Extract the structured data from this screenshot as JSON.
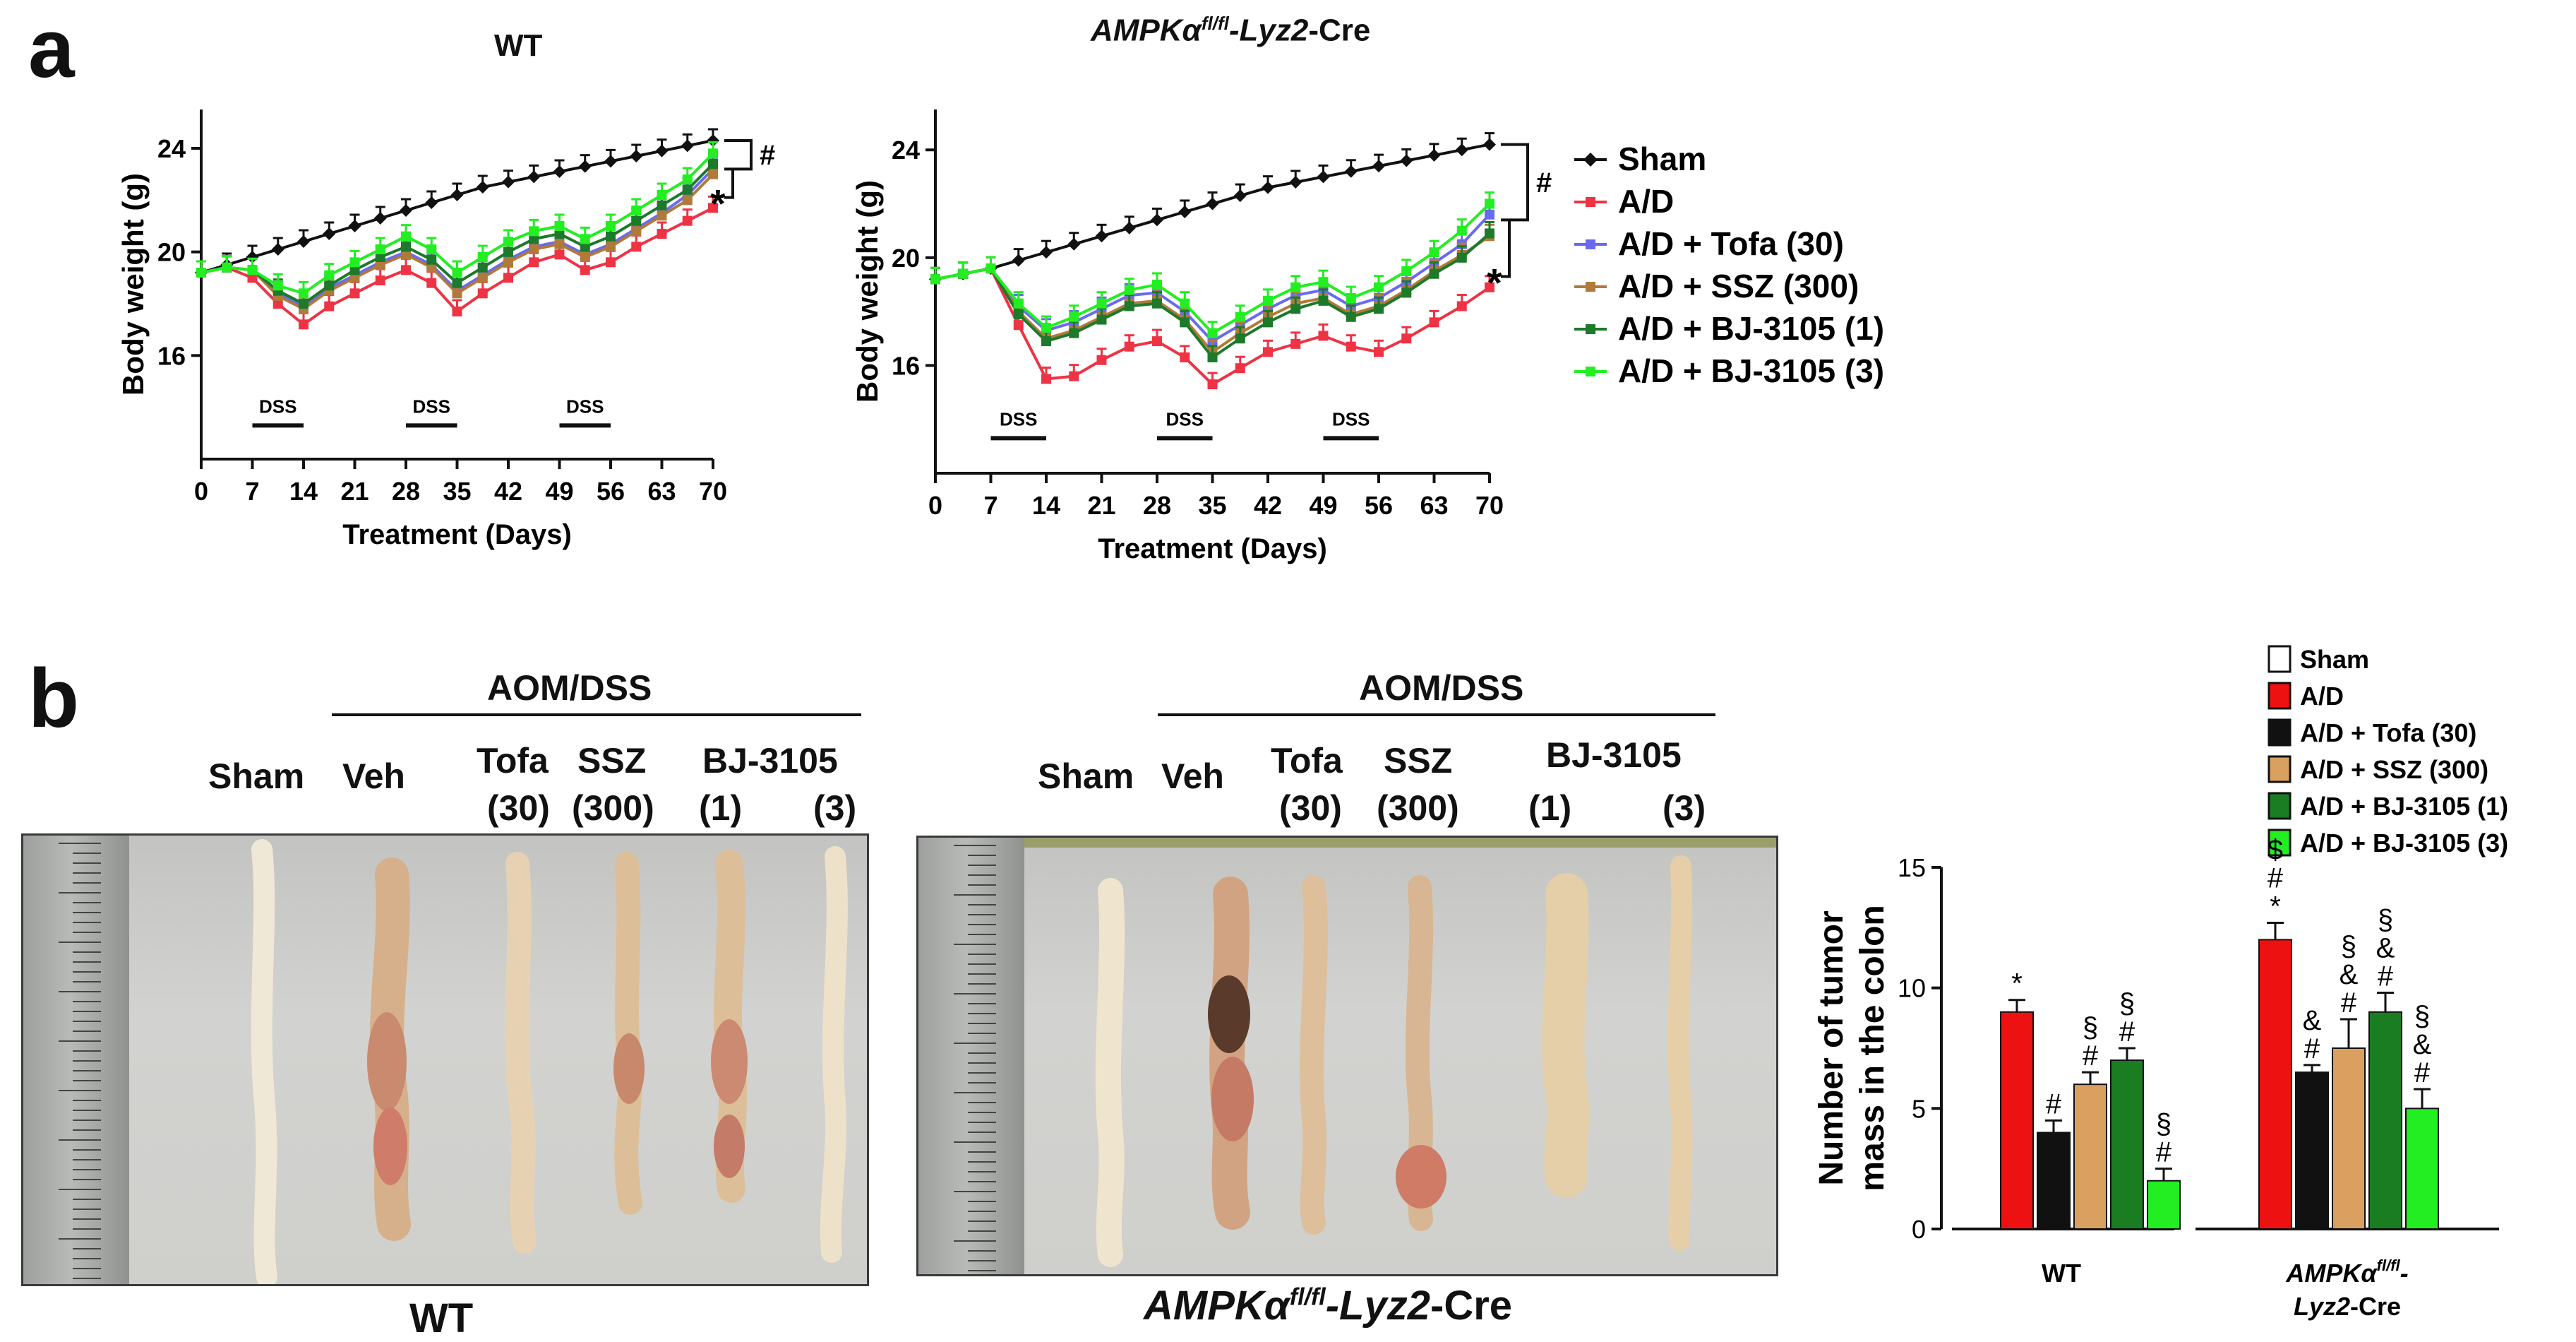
{
  "panel_a": {
    "letter": "a",
    "wt_title": "WT",
    "ko_title_main": "AMPKα",
    "ko_title_sup": "fl/fl",
    "ko_title_rest": "-Lyz2",
    "ko_title_cre": "-Cre",
    "legend": [
      {
        "label": "Sham",
        "color": "#111111"
      },
      {
        "label": "A/D",
        "color": "#ee3344"
      },
      {
        "label": "A/D + Tofa (30)",
        "color": "#6a6af0"
      },
      {
        "label": "A/D + SSZ (300)",
        "color": "#b07a3a"
      },
      {
        "label": "A/D + BJ-3105 (1)",
        "color": "#1c7a2a"
      },
      {
        "label": "A/D + BJ-3105 (3)",
        "color": "#22ee22"
      }
    ],
    "dss_label": "DSS",
    "significance": {
      "hash": "#",
      "star": "*"
    }
  },
  "panel_b": {
    "letter": "b",
    "aom_dss": "AOM/DSS",
    "treatments": {
      "sham": "Sham",
      "veh": "Veh",
      "tofa": "Tofa",
      "tofa_dose": "(30)",
      "ssz": "SSZ",
      "ssz_dose": "(300)",
      "bj": "BJ-3105",
      "bj_dose1": "(1)",
      "bj_dose3": "(3)"
    },
    "wt_caption": "WT",
    "ko_caption_main": "AMPKα",
    "ko_caption_sup": "fl/fl",
    "ko_caption_rest": "-Lyz2",
    "ko_caption_cre": "-Cre",
    "bar_legend": [
      {
        "label": "Sham",
        "color": "#ffffff"
      },
      {
        "label": "A/D",
        "color": "#ee1111"
      },
      {
        "label": "A/D + Tofa (30)",
        "color": "#111111"
      },
      {
        "label": "A/D + SSZ (300)",
        "color": "#d9a060"
      },
      {
        "label": "A/D + BJ-3105 (1)",
        "color": "#1b7d22"
      },
      {
        "label": "A/D + BJ-3105 (3)",
        "color": "#22ee22"
      }
    ],
    "bar_ylabel_1": "Number of tumor",
    "bar_ylabel_2": "mass in the colon",
    "bar_group_wt": "WT",
    "bar_group_ko_main": "AMPKα",
    "bar_group_ko_sup": "fl/fl",
    "bar_group_ko_dash": "-",
    "bar_group_ko_line2a": "Lyz2",
    "bar_group_ko_line2b": "-Cre"
  },
  "chart_data": [
    {
      "type": "line",
      "title": "WT",
      "xlabel": "Treatment (Days)",
      "ylabel": "Body weight (g)",
      "x": [
        0,
        3.5,
        7,
        10.5,
        14,
        17.5,
        21,
        24.5,
        28,
        31.5,
        35,
        38.5,
        42,
        45.5,
        49,
        52.5,
        56,
        59.5,
        63,
        66.5,
        70
      ],
      "xticks": [
        0,
        7,
        14,
        21,
        28,
        35,
        42,
        49,
        56,
        63,
        70
      ],
      "yticks": [
        16,
        20,
        24
      ],
      "ylim": [
        12,
        25.5
      ],
      "xlim": [
        0,
        70
      ],
      "dss_periods": [
        [
          7,
          14
        ],
        [
          28,
          35
        ],
        [
          49,
          56
        ]
      ],
      "series": [
        {
          "name": "Sham",
          "values": [
            19.2,
            19.5,
            19.8,
            20.1,
            20.4,
            20.7,
            21.0,
            21.3,
            21.6,
            21.9,
            22.2,
            22.5,
            22.7,
            22.9,
            23.1,
            23.3,
            23.5,
            23.7,
            23.9,
            24.1,
            24.3
          ]
        },
        {
          "name": "A/D",
          "values": [
            19.2,
            19.4,
            19.0,
            18.0,
            17.2,
            17.9,
            18.4,
            18.9,
            19.3,
            18.8,
            17.7,
            18.4,
            19.0,
            19.6,
            19.9,
            19.3,
            19.6,
            20.2,
            20.7,
            21.2,
            21.7
          ]
        },
        {
          "name": "A/D + Tofa (30)",
          "values": [
            19.2,
            19.4,
            19.3,
            18.4,
            17.9,
            18.6,
            19.1,
            19.6,
            20.0,
            19.5,
            18.5,
            19.1,
            19.7,
            20.2,
            20.4,
            19.9,
            20.3,
            20.9,
            21.5,
            22.2,
            23.2
          ]
        },
        {
          "name": "A/D + SSZ (300)",
          "values": [
            19.2,
            19.4,
            19.3,
            18.3,
            17.8,
            18.5,
            19.0,
            19.5,
            19.9,
            19.4,
            18.4,
            19.0,
            19.6,
            20.1,
            20.3,
            19.8,
            20.2,
            20.8,
            21.4,
            22.0,
            23.0
          ]
        },
        {
          "name": "A/D + BJ-3105 (1)",
          "values": [
            19.2,
            19.4,
            19.3,
            18.5,
            18.0,
            18.7,
            19.3,
            19.8,
            20.2,
            19.7,
            18.8,
            19.4,
            20.0,
            20.5,
            20.7,
            20.2,
            20.6,
            21.2,
            21.8,
            22.4,
            23.4
          ]
        },
        {
          "name": "A/D + BJ-3105 (3)",
          "values": [
            19.2,
            19.4,
            19.3,
            18.7,
            18.4,
            19.1,
            19.6,
            20.1,
            20.6,
            20.1,
            19.2,
            19.8,
            20.4,
            20.8,
            21.0,
            20.5,
            21.0,
            21.6,
            22.2,
            22.8,
            23.8
          ]
        }
      ]
    },
    {
      "type": "line",
      "title": "AMPKαfl/fl-Lyz2-Cre",
      "xlabel": "Treatment (Days)",
      "ylabel": "Body weight (g)",
      "x": [
        0,
        3.5,
        7,
        10.5,
        14,
        17.5,
        21,
        24.5,
        28,
        31.5,
        35,
        38.5,
        42,
        45.5,
        49,
        52.5,
        56,
        59.5,
        63,
        66.5,
        70
      ],
      "xticks": [
        0,
        7,
        14,
        21,
        28,
        35,
        42,
        49,
        56,
        63,
        70
      ],
      "yticks": [
        16,
        20,
        24
      ],
      "ylim": [
        12,
        25.5
      ],
      "xlim": [
        0,
        70
      ],
      "dss_periods": [
        [
          7,
          14
        ],
        [
          28,
          35
        ],
        [
          49,
          56
        ]
      ],
      "series": [
        {
          "name": "Sham",
          "values": [
            19.2,
            19.4,
            19.6,
            19.9,
            20.2,
            20.5,
            20.8,
            21.1,
            21.4,
            21.7,
            22.0,
            22.3,
            22.6,
            22.8,
            23.0,
            23.2,
            23.4,
            23.6,
            23.8,
            24.0,
            24.2
          ]
        },
        {
          "name": "A/D",
          "values": [
            19.2,
            19.4,
            19.6,
            17.5,
            15.5,
            15.6,
            16.2,
            16.7,
            16.9,
            16.3,
            15.3,
            15.9,
            16.5,
            16.8,
            17.1,
            16.7,
            16.5,
            17.0,
            17.6,
            18.2,
            18.9
          ]
        },
        {
          "name": "A/D + Tofa (30)",
          "values": [
            19.2,
            19.4,
            19.6,
            18.2,
            17.3,
            17.6,
            18.1,
            18.6,
            18.7,
            18.0,
            16.9,
            17.5,
            18.1,
            18.6,
            18.8,
            18.2,
            18.5,
            19.1,
            19.8,
            20.5,
            21.6
          ]
        },
        {
          "name": "A/D + SSZ (300)",
          "values": [
            19.2,
            19.4,
            19.6,
            18.0,
            17.0,
            17.3,
            17.8,
            18.3,
            18.4,
            17.7,
            16.5,
            17.2,
            17.8,
            18.3,
            18.5,
            17.9,
            18.2,
            18.8,
            19.5,
            20.1,
            20.8
          ]
        },
        {
          "name": "A/D + BJ-3105 (1)",
          "values": [
            19.2,
            19.4,
            19.6,
            17.9,
            16.9,
            17.2,
            17.7,
            18.2,
            18.3,
            17.6,
            16.3,
            17.0,
            17.6,
            18.1,
            18.4,
            17.8,
            18.1,
            18.7,
            19.4,
            20.0,
            20.9
          ]
        },
        {
          "name": "A/D + BJ-3105 (3)",
          "values": [
            19.2,
            19.4,
            19.6,
            18.3,
            17.4,
            17.8,
            18.3,
            18.8,
            19.0,
            18.3,
            17.2,
            17.8,
            18.4,
            18.9,
            19.1,
            18.5,
            18.9,
            19.5,
            20.2,
            21.0,
            22.0
          ]
        }
      ]
    },
    {
      "type": "bar",
      "ylabel": "Number of tumor mass in the colon",
      "ylim": [
        0,
        15
      ],
      "yticks": [
        0,
        5,
        10,
        15
      ],
      "categories": [
        "WT",
        "AMPKαfl/fl-Lyz2-Cre"
      ],
      "series": [
        {
          "name": "Sham",
          "values": [
            0,
            0
          ],
          "errors": [
            0,
            0
          ],
          "marks": [
            "",
            ""
          ]
        },
        {
          "name": "A/D",
          "values": [
            9,
            12
          ],
          "errors": [
            0.5,
            0.7
          ],
          "marks": [
            "*",
            "$\n#\n*"
          ]
        },
        {
          "name": "A/D + Tofa (30)",
          "values": [
            4,
            6.5
          ],
          "errors": [
            0.5,
            0.3
          ],
          "marks": [
            "#",
            "&\n#"
          ]
        },
        {
          "name": "A/D + SSZ (300)",
          "values": [
            6,
            7.5
          ],
          "errors": [
            0.5,
            1.2
          ],
          "marks": [
            "§\n#",
            "§\n&\n#"
          ]
        },
        {
          "name": "A/D + BJ-3105 (1)",
          "values": [
            7,
            9
          ],
          "errors": [
            0.5,
            0.8
          ],
          "marks": [
            "§\n#",
            "§\n&\n#"
          ]
        },
        {
          "name": "A/D + BJ-3105 (3)",
          "values": [
            2,
            5
          ],
          "errors": [
            0.5,
            0.8
          ],
          "marks": [
            "§\n#",
            "§\n&\n#"
          ]
        }
      ]
    }
  ]
}
